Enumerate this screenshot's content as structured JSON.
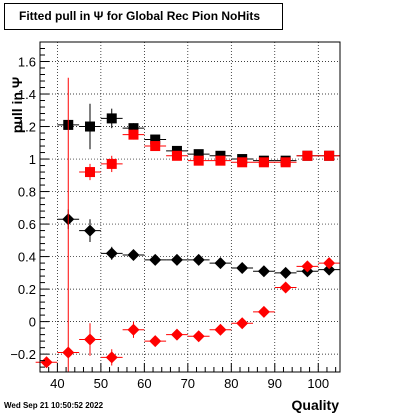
{
  "chart_data": {
    "type": "scatter",
    "title": "Fitted pull in  Ψ  for Global Rec Pion NoHits",
    "xlabel": "Quality",
    "ylabel": "pull in Ψ",
    "xlim": [
      36,
      105
    ],
    "ylim": [
      -0.31,
      1.72
    ],
    "xticks": [
      40,
      50,
      60,
      70,
      80,
      90,
      100
    ],
    "yticks": [
      -0.2,
      0,
      0.2,
      0.4,
      0.6,
      0.8,
      1,
      1.2,
      1.4,
      1.6
    ],
    "ytick_labels": [
      "−0.2",
      "0",
      "0.2",
      "0.4",
      "0.6",
      "0.8",
      "1",
      "1.2",
      "1.4",
      "1.6"
    ],
    "grid": true,
    "x_half_width": 2.5,
    "series": [
      {
        "marker": "square",
        "color": "#000000",
        "points": [
          {
            "x": 42.5,
            "y": 1.21,
            "ey": 0.0
          },
          {
            "x": 47.5,
            "y": 1.2,
            "ey": 0.14
          },
          {
            "x": 52.5,
            "y": 1.25,
            "ey": 0.06
          },
          {
            "x": 57.5,
            "y": 1.19,
            "ey": 0.03
          },
          {
            "x": 62.5,
            "y": 1.12,
            "ey": 0.02
          },
          {
            "x": 67.5,
            "y": 1.05,
            "ey": 0.01
          },
          {
            "x": 72.5,
            "y": 1.03,
            "ey": 0.01
          },
          {
            "x": 77.5,
            "y": 1.02,
            "ey": 0.01
          },
          {
            "x": 82.5,
            "y": 1.0,
            "ey": 0.01
          },
          {
            "x": 87.5,
            "y": 0.99,
            "ey": 0.01
          },
          {
            "x": 92.5,
            "y": 0.99,
            "ey": 0.01
          },
          {
            "x": 97.5,
            "y": 1.02,
            "ey": 0.01
          },
          {
            "x": 102.5,
            "y": 1.02,
            "ey": 0.01
          }
        ]
      },
      {
        "marker": "square",
        "color": "#ff0000",
        "points": [
          {
            "x": 47.5,
            "y": 0.92,
            "ey": 0.05
          },
          {
            "x": 52.5,
            "y": 0.97,
            "ey": 0.05
          },
          {
            "x": 57.5,
            "y": 1.15,
            "ey": 0.03
          },
          {
            "x": 62.5,
            "y": 1.08,
            "ey": 0.02
          },
          {
            "x": 67.5,
            "y": 1.02,
            "ey": 0.01
          },
          {
            "x": 72.5,
            "y": 0.99,
            "ey": 0.01
          },
          {
            "x": 77.5,
            "y": 0.99,
            "ey": 0.01
          },
          {
            "x": 82.5,
            "y": 0.98,
            "ey": 0.01
          },
          {
            "x": 87.5,
            "y": 0.98,
            "ey": 0.01
          },
          {
            "x": 92.5,
            "y": 0.98,
            "ey": 0.01
          },
          {
            "x": 97.5,
            "y": 1.02,
            "ey": 0.01
          },
          {
            "x": 102.5,
            "y": 1.02,
            "ey": 0.01
          }
        ]
      },
      {
        "marker": "diamond",
        "color": "#000000",
        "points": [
          {
            "x": 42.5,
            "y": 0.63,
            "ey": 0.06
          },
          {
            "x": 47.5,
            "y": 0.56,
            "ey": 0.07
          },
          {
            "x": 52.5,
            "y": 0.42,
            "ey": 0.04
          },
          {
            "x": 57.5,
            "y": 0.41,
            "ey": 0.03
          },
          {
            "x": 62.5,
            "y": 0.38,
            "ey": 0.01
          },
          {
            "x": 67.5,
            "y": 0.38,
            "ey": 0.01
          },
          {
            "x": 72.5,
            "y": 0.38,
            "ey": 0.01
          },
          {
            "x": 77.5,
            "y": 0.36,
            "ey": 0.01
          },
          {
            "x": 82.5,
            "y": 0.33,
            "ey": 0.01
          },
          {
            "x": 87.5,
            "y": 0.31,
            "ey": 0.01
          },
          {
            "x": 92.5,
            "y": 0.3,
            "ey": 0.01
          },
          {
            "x": 97.5,
            "y": 0.31,
            "ey": 0.01
          },
          {
            "x": 102.5,
            "y": 0.32,
            "ey": 0.01
          }
        ]
      },
      {
        "marker": "diamond",
        "color": "#ff0000",
        "points": [
          {
            "x": 37.5,
            "y": -0.25,
            "ey": 0.0
          },
          {
            "x": 42.5,
            "y": -0.19,
            "ey": 1.69
          },
          {
            "x": 47.5,
            "y": -0.11,
            "ey": 0.1
          },
          {
            "x": 52.5,
            "y": -0.22,
            "ey": 0.05
          },
          {
            "x": 57.5,
            "y": -0.05,
            "ey": 0.05
          },
          {
            "x": 62.5,
            "y": -0.12,
            "ey": 0.03
          },
          {
            "x": 67.5,
            "y": -0.08,
            "ey": 0.02
          },
          {
            "x": 72.5,
            "y": -0.09,
            "ey": 0.02
          },
          {
            "x": 77.5,
            "y": -0.05,
            "ey": 0.01
          },
          {
            "x": 82.5,
            "y": -0.01,
            "ey": 0.01
          },
          {
            "x": 87.5,
            "y": 0.06,
            "ey": 0.01
          },
          {
            "x": 92.5,
            "y": 0.21,
            "ey": 0.01
          },
          {
            "x": 97.5,
            "y": 0.34,
            "ey": 0.01
          },
          {
            "x": 102.5,
            "y": 0.36,
            "ey": 0.01
          }
        ]
      }
    ]
  },
  "timestamp": "Wed Sep 21 10:50:52 2022"
}
